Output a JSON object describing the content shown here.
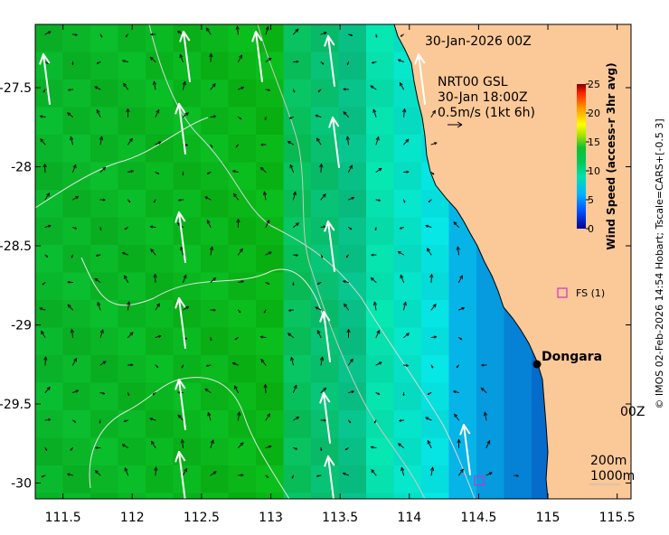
{
  "map": {
    "title": "30-Jan-2026 00Z",
    "x_ticks": [
      "111.5",
      "112",
      "112.5",
      "113",
      "113.5",
      "114",
      "114.5",
      "115",
      "115.5"
    ],
    "y_ticks": [
      "-27.5",
      "-28",
      "-28.5",
      "-29",
      "-29.5",
      "-30"
    ],
    "x_range": [
      111.3,
      115.6
    ],
    "y_range": [
      -30.1,
      -27.1
    ],
    "reference": {
      "source": "NRT00 GSL",
      "time": "30-Jan 18:00Z",
      "vector_label": "0.5m/s (1kt 6h)"
    },
    "colorbar": {
      "label": "Wind Speed (access-r 3hr avg)",
      "ticks": [
        "25",
        "20",
        "15",
        "10",
        "5",
        "0"
      ],
      "range": [
        0,
        25
      ]
    },
    "places": [
      {
        "name": "Dongara",
        "lon": 114.93,
        "lat": -29.25
      }
    ],
    "stations": [
      {
        "name": "FS (1)",
        "lon": 115.1,
        "lat": -28.78
      }
    ],
    "side_text": "00Z",
    "contour_legend": {
      "line1": "200m",
      "line2": "1000m"
    },
    "credit": "© IMOS 02-Feb-2026 14:54 Hobart; Tscale=CARS+[-0.5 3]",
    "colors": {
      "land": "#fbc898",
      "station": "#cc33cc",
      "arrow_white": "#ffffff",
      "arrow_black": "#111111"
    }
  }
}
